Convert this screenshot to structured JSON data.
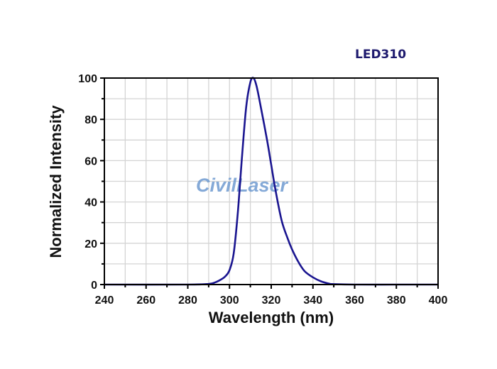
{
  "chart_data": {
    "type": "line",
    "title": "LED310",
    "xlabel": "Wavelength (nm)",
    "ylabel": "Normalized Intensity",
    "xlim": [
      240,
      400
    ],
    "ylim": [
      0,
      100
    ],
    "x_ticks": [
      240,
      260,
      280,
      300,
      320,
      340,
      360,
      380,
      400
    ],
    "y_ticks": [
      0,
      20,
      40,
      60,
      80,
      100
    ],
    "grid": true,
    "legend": null,
    "watermark": "CivilLaser",
    "series": [
      {
        "name": "LED310",
        "color": "#1a1590",
        "x": [
          240,
          280,
          290,
          293,
          296,
          298,
          300,
          302,
          304,
          306,
          308,
          310,
          311.5,
          313,
          315,
          318,
          320,
          322,
          325,
          328,
          330,
          333,
          336,
          340,
          344,
          348,
          350,
          360,
          380,
          400
        ],
        "y": [
          0,
          0,
          0.3,
          1,
          2.5,
          4,
          7,
          15,
          35,
          62,
          86,
          98,
          100,
          96,
          86,
          70,
          58,
          46,
          31,
          22,
          17,
          11,
          6.5,
          3.5,
          1.5,
          0.4,
          0.2,
          0,
          0,
          0
        ]
      }
    ]
  }
}
